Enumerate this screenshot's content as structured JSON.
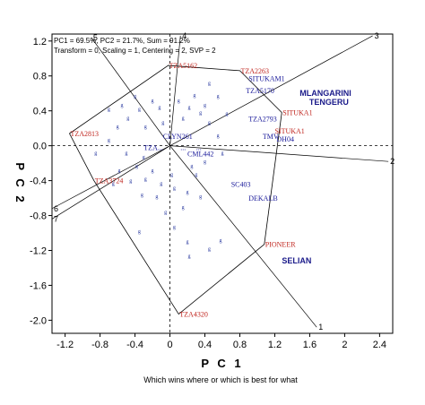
{
  "chart_data": {
    "type": "scatter",
    "info_line1": "PC1 = 69.5%, PC2 = 21.7%, Sum = 91.2%",
    "info_line2": "Transform = 0, Scaling = 1, Centering = 2, SVP = 2",
    "xlabel": "P C 1",
    "ylabel": "P C 2",
    "caption": "Which wins where or which is best for what",
    "xlim": [
      -1.35,
      2.55
    ],
    "ylim": [
      -2.15,
      1.28
    ],
    "xticks": [
      -1.2,
      -0.8,
      -0.4,
      0.0,
      0.4,
      0.8,
      1.2,
      1.6,
      2.0,
      2.4
    ],
    "xtick_labels": [
      "-1.2",
      "-0.8",
      "-0.4",
      "0",
      "0.4",
      "0.8",
      "1.2",
      "1.6",
      "2",
      "2.4"
    ],
    "yticks": [
      1.2,
      0.8,
      0.4,
      0.0,
      -0.4,
      -0.8,
      -1.2,
      -1.6,
      -2.0
    ],
    "ytick_labels": [
      "1.2",
      "0.8",
      "0.4",
      "0.0",
      "-0.4",
      "-0.8",
      "-1.2",
      "-1.6",
      "-2.0"
    ],
    "colors": {
      "genotype": "#1a1a9a",
      "vertex": "#c0261f",
      "sector": "#1a1a8a",
      "line": "#000000"
    },
    "polygon": [
      {
        "label": "TZA5162",
        "x": -0.02,
        "y": 0.92
      },
      {
        "label": "TZA2263",
        "x": 0.8,
        "y": 0.86
      },
      {
        "label": "SITUKA1",
        "x": 1.28,
        "y": 0.38
      },
      {
        "label": "PIONEER",
        "x": 1.08,
        "y": -1.13
      },
      {
        "label": "TZA4320",
        "x": 0.1,
        "y": -1.93
      },
      {
        "label": "TZA3724",
        "x": -0.87,
        "y": -0.4
      },
      {
        "label": "TZA2813",
        "x": -1.15,
        "y": 0.14
      }
    ],
    "environment_vectors": [
      {
        "label": "1",
        "x": 1.68,
        "y": -2.08
      },
      {
        "label": "2",
        "x": 2.5,
        "y": -0.18
      },
      {
        "label": "3",
        "x": 2.32,
        "y": 1.26
      },
      {
        "label": "4",
        "x": 0.12,
        "y": 1.26
      },
      {
        "label": "5",
        "x": -0.9,
        "y": 1.24
      },
      {
        "label": "6",
        "x": -1.35,
        "y": -0.72
      },
      {
        "label": "7",
        "x": -1.35,
        "y": -0.84
      }
    ],
    "sector_rays": [
      {
        "x": 0.12,
        "y": 1.26
      },
      {
        "x": -0.9,
        "y": 1.24
      },
      {
        "x": -1.35,
        "y": -0.72
      },
      {
        "x": 1.68,
        "y": -2.08
      },
      {
        "x": 2.32,
        "y": 1.26
      },
      {
        "x": 2.5,
        "y": -0.18
      },
      {
        "x": -1.35,
        "y": -0.84
      }
    ],
    "labeled_genotypes": [
      {
        "label": "SITUKAM1",
        "x": 0.9,
        "y": 0.74,
        "color": "blue"
      },
      {
        "label": "TZA5170",
        "x": 0.87,
        "y": 0.6,
        "color": "blue"
      },
      {
        "label": "TZA2793",
        "x": 0.9,
        "y": 0.28,
        "color": "blue"
      },
      {
        "label": "TMV",
        "x": 1.06,
        "y": 0.08,
        "color": "blue"
      },
      {
        "label": "DH04",
        "x": 1.22,
        "y": 0.05,
        "color": "blue"
      },
      {
        "label": "SITUKA1",
        "x": 1.2,
        "y": 0.14,
        "color": "red"
      },
      {
        "label": "CML442",
        "x": 0.2,
        "y": -0.12,
        "color": "blue"
      },
      {
        "label": "SC403",
        "x": 0.7,
        "y": -0.47,
        "color": "blue"
      },
      {
        "label": "DEKALB",
        "x": 0.9,
        "y": -0.63,
        "color": "blue"
      },
      {
        "label": "CLYN261",
        "x": -0.08,
        "y": 0.08,
        "color": "blue"
      },
      {
        "label": "TZA...",
        "x": -0.3,
        "y": -0.05,
        "color": "blue"
      },
      {
        "label": "...",
        "x": 0.12,
        "y": -0.05,
        "color": "blue"
      },
      {
        "label": "...",
        "x": 0.3,
        "y": -0.05,
        "color": "blue"
      }
    ],
    "sector_labels": [
      {
        "label": "MLANGARINI",
        "x": 1.78,
        "y": 0.57
      },
      {
        "label": "TENGERU",
        "x": 1.82,
        "y": 0.47
      },
      {
        "label": "SELIAN",
        "x": 1.45,
        "y": -1.35
      }
    ],
    "points": [
      {
        "x": -0.4,
        "y": 0.55
      },
      {
        "x": -0.55,
        "y": 0.45
      },
      {
        "x": -0.2,
        "y": 0.5
      },
      {
        "x": -0.35,
        "y": 0.4
      },
      {
        "x": -0.12,
        "y": 0.42
      },
      {
        "x": -0.48,
        "y": 0.3
      },
      {
        "x": -0.28,
        "y": 0.2
      },
      {
        "x": -0.08,
        "y": 0.25
      },
      {
        "x": 0.15,
        "y": 0.3
      },
      {
        "x": 0.22,
        "y": 0.42
      },
      {
        "x": 0.35,
        "y": 0.36
      },
      {
        "x": 0.4,
        "y": 0.45
      },
      {
        "x": 0.45,
        "y": 0.25
      },
      {
        "x": 0.1,
        "y": 0.5
      },
      {
        "x": 0.28,
        "y": 0.56
      },
      {
        "x": -0.6,
        "y": 0.2
      },
      {
        "x": -0.7,
        "y": 0.05
      },
      {
        "x": -0.85,
        "y": -0.1
      },
      {
        "x": -0.5,
        "y": -0.1
      },
      {
        "x": -0.3,
        "y": -0.15
      },
      {
        "x": -0.58,
        "y": -0.3
      },
      {
        "x": -0.38,
        "y": -0.25
      },
      {
        "x": -0.2,
        "y": -0.3
      },
      {
        "x": -0.65,
        "y": -0.45
      },
      {
        "x": -0.45,
        "y": -0.42
      },
      {
        "x": -0.28,
        "y": -0.4
      },
      {
        "x": -0.1,
        "y": -0.45
      },
      {
        "x": -0.15,
        "y": -0.6
      },
      {
        "x": -0.32,
        "y": -0.58
      },
      {
        "x": 0.02,
        "y": -0.35
      },
      {
        "x": 0.05,
        "y": -0.5
      },
      {
        "x": 0.2,
        "y": -0.55
      },
      {
        "x": 0.35,
        "y": -0.6
      },
      {
        "x": 0.15,
        "y": -0.72
      },
      {
        "x": -0.05,
        "y": -0.78
      },
      {
        "x": 0.4,
        "y": -0.2
      },
      {
        "x": 0.6,
        "y": -0.1
      },
      {
        "x": 0.55,
        "y": 0.1
      },
      {
        "x": 0.65,
        "y": 0.35
      },
      {
        "x": 0.55,
        "y": 0.55
      },
      {
        "x": 0.45,
        "y": 0.7
      },
      {
        "x": 0.25,
        "y": -0.25
      },
      {
        "x": 0.2,
        "y": -1.12
      },
      {
        "x": 0.22,
        "y": -1.28
      },
      {
        "x": 0.45,
        "y": -1.2
      },
      {
        "x": 0.58,
        "y": -1.1
      },
      {
        "x": -0.35,
        "y": -1.0
      },
      {
        "x": 0.05,
        "y": -0.95
      },
      {
        "x": 0.3,
        "y": -0.35
      },
      {
        "x": -0.7,
        "y": 0.4
      }
    ]
  }
}
